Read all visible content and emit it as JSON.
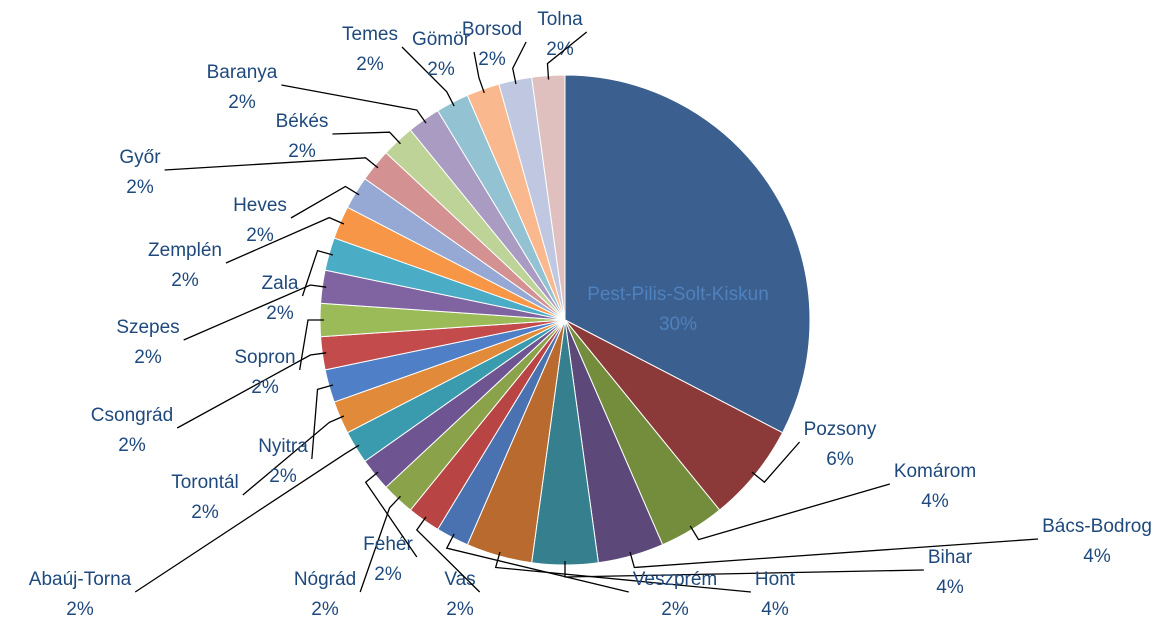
{
  "chart_data": {
    "type": "pie",
    "categories": [
      "Pest-Pilis-Solt-Kiskun",
      "Pozsony",
      "Komárom",
      "Bács-Bodrog",
      "Bihar",
      "Hont",
      "Veszprém",
      "Vas",
      "Nógrád",
      "Fehér",
      "Abaúj-Torna",
      "Torontál",
      "Nyitra",
      "Csongrád",
      "Sopron",
      "Szepes",
      "Zala",
      "Zemplén",
      "Heves",
      "Győr",
      "Békés",
      "Baranya",
      "Temes",
      "Gömör",
      "Borsod",
      "Tolna"
    ],
    "values": [
      30,
      6,
      4,
      4,
      4,
      4,
      2,
      2,
      2,
      2,
      2,
      2,
      2,
      2,
      2,
      2,
      2,
      2,
      2,
      2,
      2,
      2,
      2,
      2,
      2,
      2
    ],
    "value_labels": [
      "30%",
      "6%",
      "4%",
      "4%",
      "4%",
      "4%",
      "2%",
      "2%",
      "2%",
      "2%",
      "2%",
      "2%",
      "2%",
      "2%",
      "2%",
      "2%",
      "2%",
      "2%",
      "2%",
      "2%",
      "2%",
      "2%",
      "2%",
      "2%",
      "2%",
      "2%"
    ],
    "colors": [
      "#3b5f8e",
      "#8c3a39",
      "#738d3d",
      "#5c4979",
      "#367f8e",
      "#b86a2f",
      "#4a72b0",
      "#b94444",
      "#8aa24a",
      "#6e5592",
      "#3a9aae",
      "#e08a3a",
      "#4f7fc7",
      "#c44b4b",
      "#9bbb59",
      "#8064a2",
      "#4bacc6",
      "#f79646",
      "#95a9d4",
      "#d49191",
      "#bdd397",
      "#a99bc1",
      "#93c3d2",
      "#f9b88e",
      "#bfc8e0",
      "#e0bfbf"
    ]
  }
}
